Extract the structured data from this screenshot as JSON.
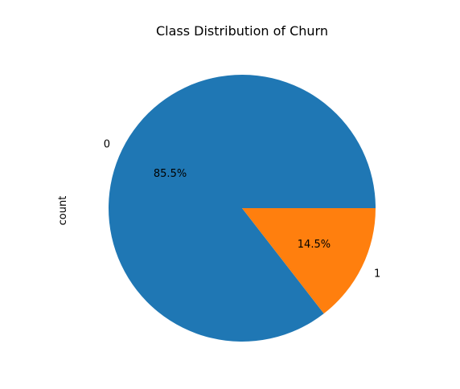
{
  "chart_data": {
    "type": "pie",
    "title": "Class Distribution of Churn",
    "ylabel": "count",
    "labels": [
      "0",
      "1"
    ],
    "percent_labels": [
      "85.5%",
      "14.5%"
    ],
    "values": [
      85.5,
      14.5
    ],
    "colors": [
      "#1f77b4",
      "#ff7f0e"
    ],
    "start_angle_deg": 0,
    "direction": "counterclockwise"
  }
}
